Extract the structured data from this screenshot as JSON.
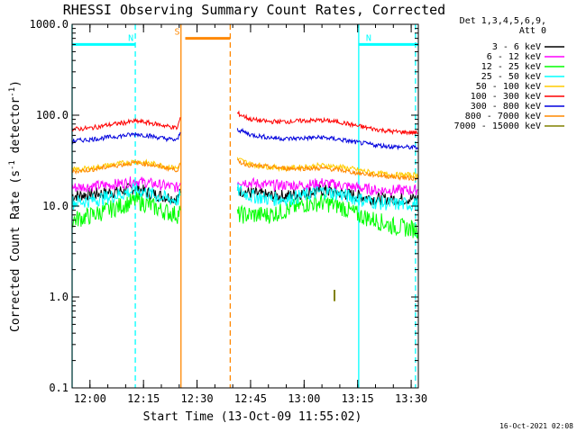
{
  "chart_data": {
    "type": "line",
    "title": "RHESSI Observing Summary Count Rates, Corrected",
    "xlabel": "Start Time (13-Oct-09 11:55:02)",
    "ylabel_main": "Corrected Count Rate (s",
    "ylabel_sup1": "-1",
    "ylabel_mid": " detector",
    "ylabel_sup2": "-1",
    "ylabel_end": ")",
    "yscale": "log",
    "ylim": [
      0.1,
      1000
    ],
    "xlim_minutes": [
      0,
      97
    ],
    "xticks": [
      {
        "t": 5,
        "label": "12:00"
      },
      {
        "t": 20,
        "label": "12:15"
      },
      {
        "t": 35,
        "label": "12:30"
      },
      {
        "t": 50,
        "label": "12:45"
      },
      {
        "t": 65,
        "label": "13:00"
      },
      {
        "t": 80,
        "label": "13:15"
      },
      {
        "t": 95,
        "label": "13:30"
      }
    ],
    "yticks": [
      {
        "v": 0.1,
        "label": "0.1"
      },
      {
        "v": 1,
        "label": "1.0"
      },
      {
        "v": 10,
        "label": "10.0"
      },
      {
        "v": 100,
        "label": "100.0"
      },
      {
        "v": 1000,
        "label": "1000.0"
      }
    ],
    "legend_header": [
      "Det 1,3,4,5,6,9,",
      "Att 0"
    ],
    "series": [
      {
        "name": "3 - 6 keV",
        "color": "#000000",
        "segments": [
          {
            "t": [
              0,
              5,
              10,
              15,
              18,
              21,
              25,
              29.5,
              30.3
            ],
            "v": [
              13,
              13.5,
              14,
              15,
              16,
              14,
              13,
              12,
              14
            ]
          },
          {
            "t": [
              46.3,
              50,
              55,
              60,
              65,
              70,
              75,
              80,
              85,
              90,
              97
            ],
            "v": [
              15,
              14,
              13,
              13,
              14,
              15,
              14,
              13,
              12,
              12,
              12
            ]
          }
        ]
      },
      {
        "name": "6 - 12 keV",
        "color": "#ff00ff",
        "segments": [
          {
            "t": [
              0,
              5,
              10,
              15,
              18,
              21,
              25,
              29.5,
              30.3
            ],
            "v": [
              16,
              16.5,
              17,
              18,
              19,
              18,
              17,
              16,
              18
            ]
          },
          {
            "t": [
              46.3,
              50,
              55,
              60,
              65,
              70,
              75,
              80,
              85,
              90,
              97
            ],
            "v": [
              19,
              18,
              17,
              17,
              17,
              18,
              17,
              16,
              15,
              15,
              15
            ]
          }
        ]
      },
      {
        "name": "12 - 25 keV",
        "color": "#00ff00",
        "segments": [
          {
            "t": [
              0,
              5,
              10,
              15,
              18,
              21,
              25,
              29.5,
              30.3
            ],
            "v": [
              7,
              7.8,
              9,
              10.5,
              11.5,
              10.5,
              9,
              8,
              9
            ]
          },
          {
            "t": [
              46.3,
              50,
              55,
              60,
              65,
              70,
              75,
              80,
              85,
              90,
              97
            ],
            "v": [
              8,
              8,
              8,
              9,
              10.5,
              11,
              10,
              8,
              7,
              6,
              5.5
            ]
          }
        ]
      },
      {
        "name": "25 - 50 keV",
        "color": "#00ffff",
        "segments": [
          {
            "t": [
              0,
              5,
              10,
              15,
              18,
              21,
              25,
              29.5,
              30.3
            ],
            "v": [
              11,
              11.5,
              12.5,
              14,
              15,
              14,
              12.5,
              11.5,
              13
            ]
          },
          {
            "t": [
              46.3,
              50,
              55,
              60,
              65,
              70,
              75,
              80,
              85,
              90,
              97
            ],
            "v": [
              15,
              13,
              12,
              12,
              13,
              14.5,
              13.5,
              12,
              11,
              10.5,
              10.5
            ]
          }
        ]
      },
      {
        "name": "50 - 100 keV",
        "color": "#ffcc00",
        "segments": [
          {
            "t": [
              0,
              5,
              10,
              15,
              18,
              21,
              25,
              29.5,
              30.3
            ],
            "v": [
              25,
              26,
              28,
              30,
              31,
              30,
              28,
              26,
              30
            ]
          },
          {
            "t": [
              46.3,
              50,
              55,
              60,
              65,
              70,
              75,
              80,
              85,
              90,
              97
            ],
            "v": [
              33,
              29,
              27,
              26,
              27,
              28,
              27,
              25,
              23,
              22,
              22
            ]
          }
        ]
      },
      {
        "name": "100 - 300 keV",
        "color": "#ff0000",
        "segments": [
          {
            "t": [
              0,
              5,
              10,
              15,
              18,
              21,
              25,
              29.5,
              30.3
            ],
            "v": [
              70,
              72,
              78,
              83,
              86,
              83,
              78,
              72,
              95
            ]
          },
          {
            "t": [
              46.3,
              50,
              55,
              60,
              65,
              70,
              75,
              80,
              85,
              90,
              97
            ],
            "v": [
              105,
              90,
              85,
              85,
              87,
              88,
              84,
              76,
              70,
              66,
              64
            ]
          }
        ]
      },
      {
        "name": "300 - 800 keV",
        "color": "#0000dd",
        "segments": [
          {
            "t": [
              0,
              5,
              10,
              15,
              18,
              21,
              25,
              29.5,
              30.3
            ],
            "v": [
              52,
              54,
              57,
              60,
              62,
              60,
              56,
              53,
              65
            ]
          },
          {
            "t": [
              46.3,
              50,
              55,
              60,
              65,
              70,
              75,
              80,
              85,
              90,
              97
            ],
            "v": [
              70,
              61,
              57,
              55,
              56,
              57,
              54,
              50,
              47,
              45,
              44
            ]
          }
        ]
      },
      {
        "name": "800 - 7000 keV",
        "color": "#ff8800",
        "segments": [
          {
            "t": [
              0,
              5,
              10,
              15,
              18,
              21,
              25,
              29.5,
              30.3
            ],
            "v": [
              24,
              25,
              27,
              29,
              30,
              29,
              27,
              25,
              29
            ]
          },
          {
            "t": [
              46.3,
              50,
              55,
              60,
              65,
              70,
              75,
              80,
              85,
              90,
              97
            ],
            "v": [
              31,
              28,
              27,
              26,
              26,
              26,
              25,
              23,
              22,
              21,
              20
            ]
          }
        ]
      },
      {
        "name": "7000 - 15000 keV",
        "color": "#808000",
        "segments": [
          {
            "t": [
              73.5,
              73.5
            ],
            "v": [
              0.9,
              1.2
            ]
          }
        ]
      }
    ],
    "annotations": [
      {
        "kind": "bar",
        "label": "N",
        "color": "#00ffff",
        "t_start": 0,
        "t_end": 17.7,
        "level": 600
      },
      {
        "kind": "bar",
        "label": "N",
        "color": "#00ffff",
        "t_start": 80.3,
        "t_end": 97,
        "level": 600
      },
      {
        "kind": "bar",
        "label": "S",
        "color": "#ff8800",
        "t_start": 31.7,
        "t_end": 44.3,
        "level": 700
      },
      {
        "kind": "vline",
        "color": "#00ffff",
        "t": 0,
        "style": "solid"
      },
      {
        "kind": "vline",
        "color": "#00ffff",
        "t": 17.7,
        "style": "dashed"
      },
      {
        "kind": "vline",
        "color": "#ff8800",
        "t": 30.5,
        "style": "solid"
      },
      {
        "kind": "vline",
        "color": "#ff8800",
        "t": 44.3,
        "style": "dashed"
      },
      {
        "kind": "vline",
        "color": "#00ffff",
        "t": 80.3,
        "style": "solid"
      },
      {
        "kind": "vline",
        "color": "#00ffff",
        "t": 96.2,
        "style": "dashed"
      }
    ],
    "footer_date": "16-Oct-2021 02:08"
  }
}
